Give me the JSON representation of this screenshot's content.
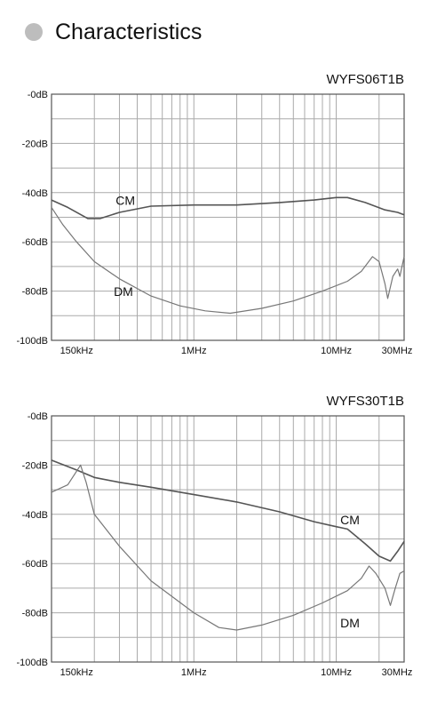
{
  "page": {
    "heading": "Characteristics"
  },
  "chart_data": [
    {
      "type": "line",
      "title": "WYFS06T1B",
      "x_scale": "log",
      "xlim": [
        0.1,
        30
      ],
      "ylim": [
        -100,
        0
      ],
      "grid": true,
      "y_ticks": [
        {
          "value": 0,
          "label": "-0dB"
        },
        {
          "value": -20,
          "label": "-20dB"
        },
        {
          "value": -40,
          "label": "-40dB"
        },
        {
          "value": -60,
          "label": "-60dB"
        },
        {
          "value": -80,
          "label": "-80dB"
        },
        {
          "value": -100,
          "label": "-100dB"
        }
      ],
      "x_ticks": [
        {
          "value": 0.15,
          "label": "150kHz"
        },
        {
          "value": 1,
          "label": "1MHz"
        },
        {
          "value": 10,
          "label": "10MHz"
        },
        {
          "value": 30,
          "label": "30MHz"
        }
      ],
      "series": [
        {
          "name": "CM",
          "color": "#555555",
          "label_at": [
            0.33,
            -45
          ],
          "points": [
            [
              0.1,
              -43
            ],
            [
              0.13,
              -46
            ],
            [
              0.18,
              -50.5
            ],
            [
              0.22,
              -50.5
            ],
            [
              0.3,
              -48
            ],
            [
              0.5,
              -45.5
            ],
            [
              1,
              -45
            ],
            [
              2,
              -45
            ],
            [
              4,
              -44
            ],
            [
              7,
              -43
            ],
            [
              10,
              -42
            ],
            [
              12,
              -42
            ],
            [
              16,
              -44
            ],
            [
              22,
              -47
            ],
            [
              27,
              -48
            ],
            [
              30,
              -49
            ]
          ]
        },
        {
          "name": "DM",
          "color": "#777777",
          "label_at": [
            0.32,
            -82
          ],
          "points": [
            [
              0.1,
              -46
            ],
            [
              0.12,
              -53
            ],
            [
              0.15,
              -60
            ],
            [
              0.2,
              -68
            ],
            [
              0.3,
              -75
            ],
            [
              0.5,
              -82
            ],
            [
              0.8,
              -86
            ],
            [
              1.2,
              -88
            ],
            [
              1.8,
              -89
            ],
            [
              3,
              -87
            ],
            [
              5,
              -84
            ],
            [
              8,
              -80
            ],
            [
              12,
              -76
            ],
            [
              15,
              -72
            ],
            [
              18,
              -66
            ],
            [
              20,
              -68
            ],
            [
              22,
              -77
            ],
            [
              23,
              -83
            ],
            [
              25,
              -74
            ],
            [
              27,
              -71
            ],
            [
              28,
              -74
            ],
            [
              30,
              -66
            ]
          ]
        }
      ]
    },
    {
      "type": "line",
      "title": "WYFS30T1B",
      "x_scale": "log",
      "xlim": [
        0.1,
        30
      ],
      "ylim": [
        -100,
        0
      ],
      "grid": true,
      "y_ticks": [
        {
          "value": 0,
          "label": "-0dB"
        },
        {
          "value": -20,
          "label": "-20dB"
        },
        {
          "value": -40,
          "label": "-40dB"
        },
        {
          "value": -60,
          "label": "-60dB"
        },
        {
          "value": -80,
          "label": "-80dB"
        },
        {
          "value": -100,
          "label": "-100dB"
        }
      ],
      "x_ticks": [
        {
          "value": 0.15,
          "label": "150kHz"
        },
        {
          "value": 1,
          "label": "1MHz"
        },
        {
          "value": 10,
          "label": "10MHz"
        },
        {
          "value": 30,
          "label": "30MHz"
        }
      ],
      "series": [
        {
          "name": "CM",
          "color": "#555555",
          "label_at": [
            12.5,
            -44
          ],
          "points": [
            [
              0.1,
              -18
            ],
            [
              0.15,
              -22
            ],
            [
              0.2,
              -25
            ],
            [
              0.3,
              -27
            ],
            [
              0.5,
              -29
            ],
            [
              1,
              -32
            ],
            [
              2,
              -35
            ],
            [
              4,
              -39
            ],
            [
              7,
              -43
            ],
            [
              10,
              -45
            ],
            [
              12,
              -46
            ],
            [
              16,
              -52
            ],
            [
              20,
              -57
            ],
            [
              24,
              -59
            ],
            [
              27,
              -55
            ],
            [
              30,
              -51
            ]
          ]
        },
        {
          "name": "DM",
          "color": "#777777",
          "label_at": [
            12.5,
            -86
          ],
          "points": [
            [
              0.1,
              -31
            ],
            [
              0.13,
              -28
            ],
            [
              0.16,
              -20
            ],
            [
              0.175,
              -27
            ],
            [
              0.2,
              -40
            ],
            [
              0.3,
              -53
            ],
            [
              0.5,
              -67
            ],
            [
              1,
              -80
            ],
            [
              1.5,
              -86
            ],
            [
              2,
              -87
            ],
            [
              3,
              -85
            ],
            [
              5,
              -81
            ],
            [
              8,
              -76
            ],
            [
              12,
              -71
            ],
            [
              15,
              -66
            ],
            [
              17,
              -61
            ],
            [
              19,
              -64
            ],
            [
              22,
              -70
            ],
            [
              24,
              -77
            ],
            [
              26,
              -70
            ],
            [
              28,
              -64
            ],
            [
              30,
              -63
            ]
          ]
        }
      ]
    }
  ]
}
